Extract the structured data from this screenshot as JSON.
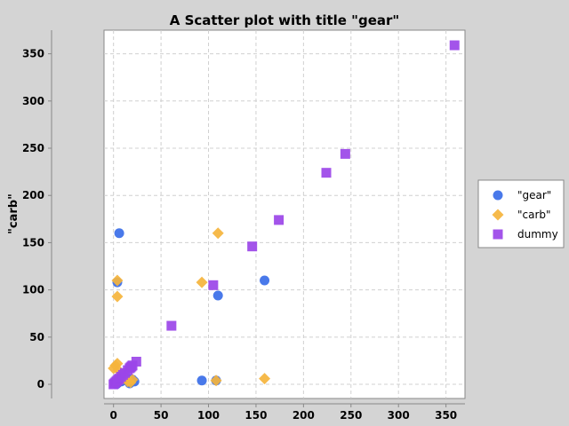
{
  "chart_data": {
    "type": "scatter",
    "title": "A Scatter plot with title \"gear\"",
    "xlabel": "",
    "ylabel": "\"carb\"",
    "xlim": [
      -10,
      370
    ],
    "ylim": [
      -15,
      375
    ],
    "xticks": [
      0,
      50,
      100,
      150,
      200,
      250,
      300,
      350
    ],
    "yticks": [
      0,
      50,
      100,
      150,
      200,
      250,
      300,
      350
    ],
    "grid": true,
    "legend_position": "right",
    "series": [
      {
        "name": "\"gear\"",
        "marker": "circle",
        "color": "#3a6ee8",
        "points": [
          [
            3,
            0
          ],
          [
            5,
            2
          ],
          [
            8,
            3
          ],
          [
            4,
            1
          ],
          [
            6,
            5
          ],
          [
            10,
            4
          ],
          [
            17,
            1
          ],
          [
            20,
            5
          ],
          [
            22,
            3
          ],
          [
            15,
            6
          ],
          [
            18,
            2
          ],
          [
            4,
            108
          ],
          [
            6,
            160
          ],
          [
            93,
            4
          ],
          [
            108,
            4
          ],
          [
            110,
            94
          ],
          [
            159,
            110
          ]
        ]
      },
      {
        "name": "\"carb\"",
        "marker": "diamond",
        "color": "#f5b43c",
        "points": [
          [
            0,
            17
          ],
          [
            2,
            20
          ],
          [
            4,
            22
          ],
          [
            5,
            15
          ],
          [
            8,
            10
          ],
          [
            10,
            6
          ],
          [
            15,
            3
          ],
          [
            18,
            2
          ],
          [
            20,
            5
          ],
          [
            4,
            93
          ],
          [
            4,
            110
          ],
          [
            93,
            108
          ],
          [
            108,
            4
          ],
          [
            110,
            160
          ],
          [
            159,
            6
          ]
        ]
      },
      {
        "name": "dummy",
        "marker": "square",
        "color": "#9b45e8",
        "points": [
          [
            0,
            0
          ],
          [
            1,
            1
          ],
          [
            2,
            2
          ],
          [
            3,
            3
          ],
          [
            4,
            4
          ],
          [
            5,
            5
          ],
          [
            6,
            6
          ],
          [
            8,
            8
          ],
          [
            10,
            10
          ],
          [
            12,
            12
          ],
          [
            15,
            15
          ],
          [
            17,
            17
          ],
          [
            18,
            18
          ],
          [
            19,
            19
          ],
          [
            20,
            20
          ],
          [
            24,
            24
          ],
          [
            61,
            62
          ],
          [
            105,
            105
          ],
          [
            146,
            146
          ],
          [
            174,
            174
          ],
          [
            224,
            224
          ],
          [
            244,
            244
          ],
          [
            359,
            359
          ]
        ]
      }
    ]
  }
}
